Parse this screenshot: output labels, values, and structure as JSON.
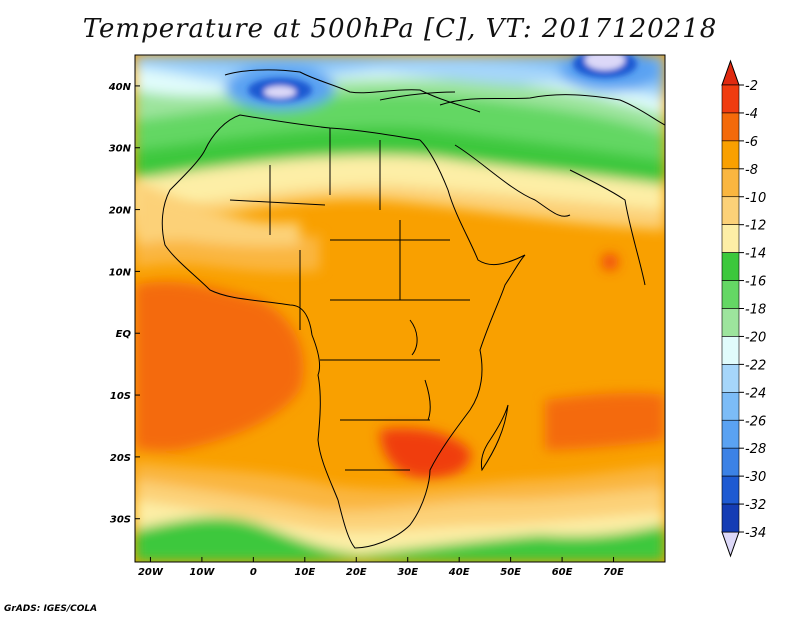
{
  "title": "Temperature at 500hPa [C], VT: 2017120218",
  "credit": "GrADS: IGES/COLA",
  "map": {
    "lon_range": [
      -23,
      80
    ],
    "lat_range": [
      -37,
      45
    ],
    "lon_ticks": [
      {
        "v": -20,
        "label": "20W"
      },
      {
        "v": -10,
        "label": "10W"
      },
      {
        "v": 0,
        "label": "0"
      },
      {
        "v": 10,
        "label": "10E"
      },
      {
        "v": 20,
        "label": "20E"
      },
      {
        "v": 30,
        "label": "30E"
      },
      {
        "v": 40,
        "label": "40E"
      },
      {
        "v": 50,
        "label": "50E"
      },
      {
        "v": 60,
        "label": "60E"
      },
      {
        "v": 70,
        "label": "70E"
      }
    ],
    "lat_ticks": [
      {
        "v": 40,
        "label": "40N"
      },
      {
        "v": 30,
        "label": "30N"
      },
      {
        "v": 20,
        "label": "20N"
      },
      {
        "v": 10,
        "label": "10N"
      },
      {
        "v": 0,
        "label": "EQ"
      },
      {
        "v": -10,
        "label": "10S"
      },
      {
        "v": -20,
        "label": "20S"
      },
      {
        "v": -30,
        "label": "30S"
      }
    ]
  },
  "colorbar": {
    "labels": [
      "-2",
      "-4",
      "-6",
      "-8",
      "-10",
      "-12",
      "-14",
      "-16",
      "-18",
      "-20",
      "-22",
      "-24",
      "-26",
      "-28",
      "-30",
      "-32",
      "-34"
    ],
    "colors": [
      "#f03c10",
      "#f46a0a",
      "#f9a000",
      "#fab640",
      "#fcd178",
      "#fdeea6",
      "#3cc83c",
      "#64d764",
      "#9de49d",
      "#e1fcfc",
      "#a6d6fa",
      "#7cbcf7",
      "#5aa2f2",
      "#3c82e6",
      "#1e5ad2",
      "#143cb4",
      "#0c1a78"
    ],
    "top_color": "#e02a10",
    "bottom_color": "#dcd8f8"
  }
}
